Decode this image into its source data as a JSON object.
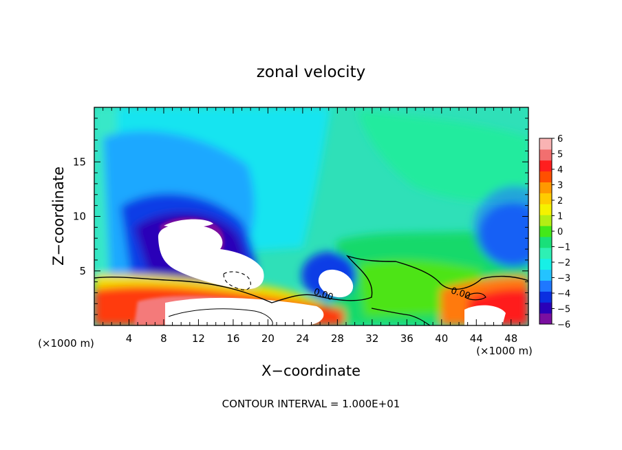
{
  "chart_data": {
    "type": "heatmap",
    "title": "zonal velocity",
    "xlabel": "X−coordinate",
    "ylabel": "Z−coordinate",
    "x_unit_left": "(×1000 m)",
    "x_unit_right": "(×1000 m)",
    "xlim": [
      0,
      50
    ],
    "ylim": [
      0,
      20
    ],
    "x_ticks": [
      4,
      8,
      12,
      16,
      20,
      24,
      28,
      32,
      36,
      40,
      44,
      48
    ],
    "y_ticks": [
      5,
      10,
      15
    ],
    "colorbar": {
      "tick_labels": [
        "6",
        "5",
        "4",
        "3",
        "2",
        "1",
        "0",
        "−1",
        "−2",
        "−3",
        "−4",
        "−5",
        "−6"
      ],
      "vmin": -6,
      "vmax": 6,
      "colors": [
        "#7a0fa0",
        "#2a00b8",
        "#0a2fe0",
        "#1f78ff",
        "#24c3ff",
        "#17f0e6",
        "#2ef0b4",
        "#19e07a",
        "#43e81a",
        "#b4ee14",
        "#f5f200",
        "#ffcc00",
        "#ff9900",
        "#ff5000",
        "#ff1e1e",
        "#f26f6f",
        "#f9b3b3"
      ]
    },
    "contour_labels": [
      {
        "text": "0.00",
        "x": 26.3,
        "z": 2.6
      },
      {
        "text": "0.00",
        "x": 42.1,
        "z": 2.7
      }
    ],
    "footer": "CONTOUR INTERVAL = 1.000E+01"
  }
}
